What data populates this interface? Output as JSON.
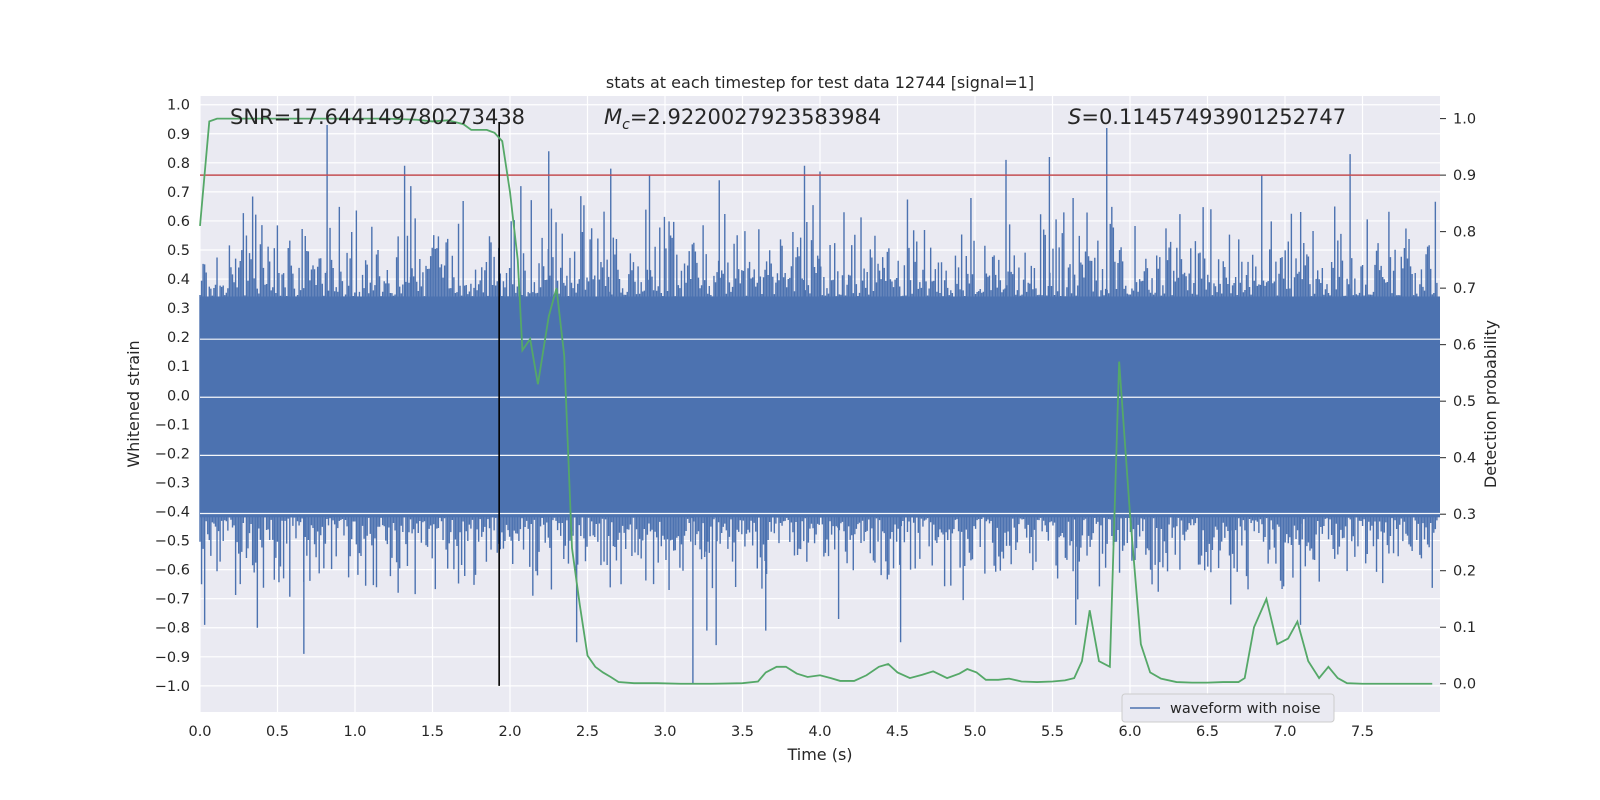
{
  "chart_data": {
    "type": "line",
    "title": "stats at each timestep for test data 12744 [signal=1]",
    "xlabel": "Time (s)",
    "ylabel": "Whitened strain",
    "y2label": "Detection probability",
    "xlim": [
      0.0,
      8.0
    ],
    "ylim": [
      -1.09,
      1.03
    ],
    "y2lim": [
      -0.05,
      1.04
    ],
    "xticks": [
      0.0,
      0.5,
      1.0,
      1.5,
      2.0,
      2.5,
      3.0,
      3.5,
      4.0,
      4.5,
      5.0,
      5.5,
      6.0,
      6.5,
      7.0,
      7.5
    ],
    "xtick_labels": [
      "0.0",
      "0.5",
      "1.0",
      "1.5",
      "2.0",
      "2.5",
      "3.0",
      "3.5",
      "4.0",
      "4.5",
      "5.0",
      "5.5",
      "6.0",
      "6.5",
      "7.0",
      "7.5"
    ],
    "yticks": [
      1.0,
      0.9,
      0.8,
      0.7,
      0.6,
      0.5,
      0.4,
      0.3,
      0.2,
      0.1,
      0.0,
      -0.1,
      -0.2,
      -0.3,
      -0.4,
      -0.5,
      -0.6,
      -0.7,
      -0.8,
      -0.9,
      -1.0
    ],
    "ytick_labels": [
      "1.0",
      "0.9",
      "0.8",
      "0.7",
      "0.6",
      "0.5",
      "0.4",
      "0.3",
      "0.2",
      "0.1",
      "0.0",
      "−0.1",
      "−0.2",
      "−0.3",
      "−0.4",
      "−0.5",
      "−0.6",
      "−0.7",
      "−0.8",
      "−0.9",
      "−1.0"
    ],
    "y2ticks": [
      1.0,
      0.9,
      0.8,
      0.7,
      0.6,
      0.5,
      0.4,
      0.3,
      0.2,
      0.1,
      0.0
    ],
    "y2tick_labels": [
      "1.0",
      "0.9",
      "0.8",
      "0.7",
      "0.6",
      "0.5",
      "0.4",
      "0.3",
      "0.2",
      "0.1",
      "0.0"
    ],
    "grid": true,
    "legend": {
      "entries": [
        "waveform with noise"
      ],
      "placement": "lower-right"
    },
    "annotations": {
      "snr": "SNR=17.644149780273438",
      "mc_symbol": "M",
      "mc_sub": "c",
      "mc_value": "=2.9220027923583984",
      "s_symbol": "S",
      "s_value": "=0.11457493901252747"
    },
    "threshold": {
      "value": 0.9,
      "axis": "right",
      "color": "#c44e52"
    },
    "marker_time": 1.93,
    "waveform": {
      "name": "waveform with noise",
      "color": "#4c72b0",
      "t_start": 0.0,
      "t_end": 7.98,
      "samples": 800,
      "band_upper": 0.34,
      "band_lower": -0.42,
      "spikes_up": [
        [
          0.82,
          0.93
        ],
        [
          1.32,
          0.79
        ],
        [
          1.36,
          0.72
        ],
        [
          2.25,
          0.84
        ],
        [
          2.07,
          0.72
        ],
        [
          5.85,
          0.92
        ],
        [
          7.42,
          0.83
        ],
        [
          5.2,
          0.81
        ],
        [
          5.48,
          0.82
        ],
        [
          4.0,
          0.77
        ],
        [
          3.35,
          0.74
        ],
        [
          2.65,
          0.78
        ],
        [
          2.9,
          0.76
        ],
        [
          3.9,
          0.79
        ],
        [
          6.85,
          0.76
        ]
      ],
      "spikes_down": [
        [
          0.67,
          -0.89
        ],
        [
          0.37,
          -0.8
        ],
        [
          0.03,
          -0.79
        ],
        [
          2.43,
          -0.85
        ],
        [
          3.18,
          -0.99
        ],
        [
          3.33,
          -0.86
        ],
        [
          3.27,
          -0.81
        ],
        [
          4.52,
          -0.85
        ],
        [
          3.65,
          -0.81
        ],
        [
          4.12,
          -0.77
        ],
        [
          5.65,
          -0.79
        ],
        [
          6.65,
          -0.72
        ],
        [
          7.1,
          -0.79
        ]
      ]
    },
    "probability": {
      "name": "detection probability",
      "color": "#55a868",
      "x": [
        0.0,
        0.06,
        0.11,
        0.2,
        0.4,
        0.6,
        0.8,
        1.0,
        1.2,
        1.4,
        1.5,
        1.6,
        1.7,
        1.75,
        1.85,
        1.9,
        1.95,
        2.0,
        2.05,
        2.08,
        2.13,
        2.18,
        2.25,
        2.3,
        2.35,
        2.4,
        2.45,
        2.5,
        2.55,
        2.6,
        2.65,
        2.7,
        2.8,
        2.95,
        3.1,
        3.3,
        3.5,
        3.6,
        3.65,
        3.72,
        3.78,
        3.85,
        3.92,
        4.0,
        4.07,
        4.13,
        4.22,
        4.3,
        4.38,
        4.44,
        4.5,
        4.58,
        4.66,
        4.73,
        4.82,
        4.9,
        4.95,
        5.01,
        5.07,
        5.15,
        5.22,
        5.3,
        5.4,
        5.5,
        5.58,
        5.64,
        5.69,
        5.74,
        5.8,
        5.87,
        5.93,
        6.0,
        6.07,
        6.13,
        6.2,
        6.3,
        6.4,
        6.5,
        6.6,
        6.7,
        6.74,
        6.8,
        6.88,
        6.95,
        7.02,
        7.08,
        7.15,
        7.22,
        7.28,
        7.34,
        7.4,
        7.5,
        7.7,
        7.95
      ],
      "y": [
        0.81,
        0.995,
        1.0,
        1.0,
        1.0,
        1.0,
        1.0,
        1.0,
        1.0,
        0.998,
        0.995,
        0.997,
        0.99,
        0.98,
        0.98,
        0.975,
        0.96,
        0.87,
        0.75,
        0.59,
        0.61,
        0.53,
        0.65,
        0.7,
        0.58,
        0.24,
        0.14,
        0.05,
        0.03,
        0.02,
        0.012,
        0.003,
        0.001,
        0.001,
        0.0,
        0.0,
        0.001,
        0.004,
        0.02,
        0.03,
        0.03,
        0.018,
        0.012,
        0.015,
        0.01,
        0.005,
        0.005,
        0.015,
        0.03,
        0.035,
        0.02,
        0.01,
        0.016,
        0.022,
        0.01,
        0.018,
        0.026,
        0.02,
        0.007,
        0.007,
        0.009,
        0.004,
        0.003,
        0.004,
        0.006,
        0.01,
        0.04,
        0.13,
        0.04,
        0.03,
        0.57,
        0.3,
        0.07,
        0.02,
        0.009,
        0.003,
        0.002,
        0.002,
        0.003,
        0.003,
        0.01,
        0.1,
        0.15,
        0.07,
        0.08,
        0.11,
        0.04,
        0.01,
        0.03,
        0.01,
        0.001,
        0.0,
        0.0,
        0.0
      ]
    }
  }
}
